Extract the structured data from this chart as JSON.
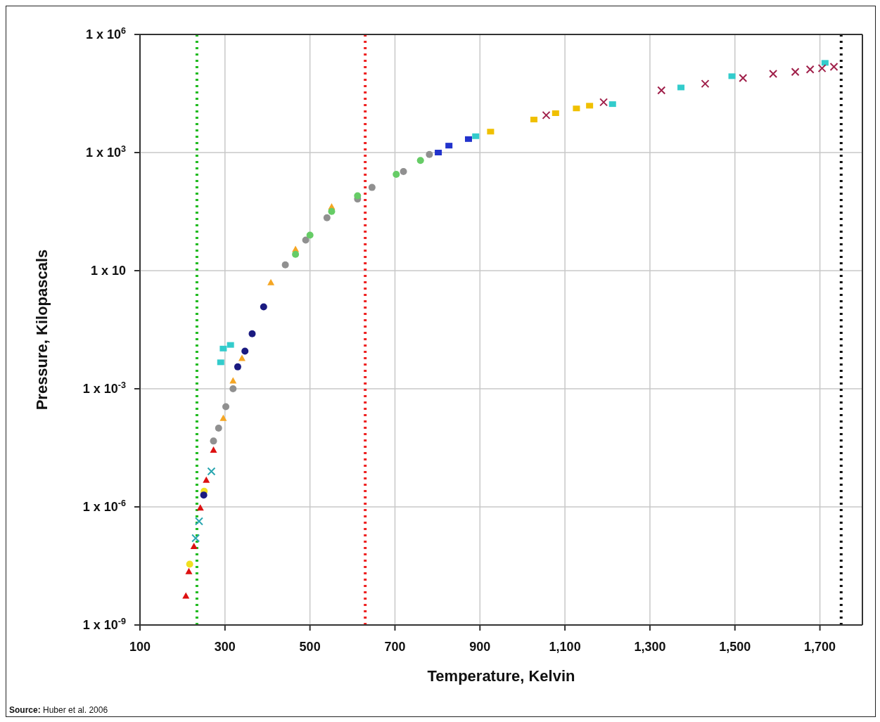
{
  "chart_data": {
    "type": "scatter",
    "xlabel": "Temperature, Kelvin",
    "ylabel": "Pressure, Kilopascals",
    "annotations": [
      "Source: Huber et al. 2006"
    ],
    "log": "y",
    "grid": true,
    "legend": false,
    "xlim": [
      100,
      1800
    ],
    "xticks": [
      100,
      300,
      500,
      700,
      900,
      {
        "value": 1100,
        "label": "1,100"
      },
      {
        "value": 1300,
        "label": "1,300"
      },
      {
        "value": 1500,
        "label": "1,500"
      },
      {
        "value": 1700,
        "label": "1,700"
      }
    ],
    "ylim": [
      1e-09,
      1000000
    ],
    "yticks": [
      {
        "value": 1e-09,
        "label": "1 x 10$^{-9}$"
      },
      {
        "value": 1e-06,
        "label": "1 x 10$^{-6}$"
      },
      {
        "value": 0.001,
        "label": "1 x 10$^{-3}$"
      },
      {
        "value": 1,
        "label": "1 x 10"
      },
      {
        "value": 1000,
        "label": "1 x 10$^{3}$"
      },
      {
        "value": 1000000,
        "label": "1 x 10$^{6}$"
      }
    ],
    "ref_lines": [
      {
        "axis": "x",
        "value": 234,
        "color": "#22bb22",
        "line_style": "dotted"
      },
      {
        "axis": "x",
        "value": 630,
        "color": "#ee2222",
        "line_style": "dotted"
      },
      {
        "axis": "x",
        "value": 1750,
        "color": "#111111",
        "line_style": "dotted"
      }
    ],
    "series": [
      {
        "color": "#dd1111",
        "marker": "triangle",
        "x": [
          208,
          215,
          227,
          242,
          256,
          273
        ],
        "values": [
          5.5e-09,
          2.3e-08,
          1e-07,
          9.5e-07,
          4.8e-06,
          2.8e-05
        ]
      },
      {
        "color": "#f0e020",
        "marker": "circle",
        "x": [
          217,
          251
        ],
        "values": [
          3.5e-08,
          2.5e-06
        ]
      },
      {
        "color": "#2aa6b0",
        "marker": "cross",
        "x": [
          231,
          239,
          268
        ],
        "values": [
          1.6e-07,
          4.3e-07,
          8e-06
        ]
      },
      {
        "color": "#1a1a80",
        "marker": "circle",
        "x": [
          250,
          330,
          347,
          364,
          391
        ],
        "values": [
          2e-06,
          0.0036,
          0.009,
          0.025,
          0.12
        ]
      },
      {
        "color": "#f5a623",
        "marker": "triangle",
        "x": [
          296,
          319,
          340,
          408,
          466,
          551
        ],
        "values": [
          0.00018,
          0.0016,
          0.006,
          0.5,
          3.5,
          42
        ]
      },
      {
        "color": "#909090",
        "marker": "circle",
        "x": [
          273,
          285,
          302,
          319,
          442,
          490,
          540,
          612,
          646,
          720,
          781
        ],
        "values": [
          4.7e-05,
          0.0001,
          0.00035,
          0.001,
          1.4,
          6,
          22,
          66,
          130,
          330,
          890
        ]
      },
      {
        "color": "#66cc66",
        "marker": "circle",
        "x": [
          466,
          500,
          551,
          612,
          703,
          760
        ],
        "values": [
          2.6,
          8,
          32,
          80,
          280,
          630
        ]
      },
      {
        "color": "#33cccc",
        "marker": "square",
        "x": [
          290,
          296,
          313,
          890,
          1212,
          1373,
          1493,
          1712
        ],
        "values": [
          0.0047,
          0.0105,
          0.013,
          2600,
          17000,
          45000,
          87000,
          190000
        ]
      },
      {
        "color": "#a0204a",
        "marker": "cross",
        "x": [
          1056,
          1191,
          1327,
          1430,
          1519,
          1590,
          1642,
          1677,
          1705,
          1733
        ],
        "values": [
          8900,
          19000,
          38000,
          56000,
          78000,
          100000,
          112000,
          129000,
          138000,
          151000
        ]
      },
      {
        "color": "#f0c000",
        "marker": "square",
        "x": [
          925,
          1027,
          1078,
          1127,
          1158
        ],
        "values": [
          3400,
          6900,
          10000,
          13200,
          15500
        ]
      },
      {
        "color": "#2233cc",
        "marker": "square",
        "x": [
          802,
          827,
          873
        ],
        "values": [
          1000,
          1500,
          2200
        ]
      }
    ]
  }
}
